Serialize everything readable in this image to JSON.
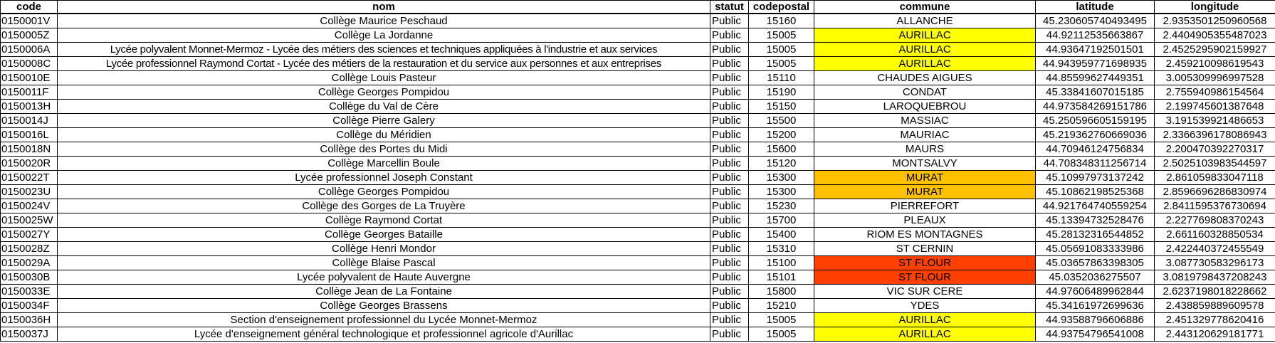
{
  "colors": {
    "AURILLAC": "#ffff00",
    "MURAT": "#ffc000",
    "ST FLOUR": "#ff4000"
  },
  "headers": [
    "code",
    "nom",
    "statut",
    "codepostal",
    "commune",
    "latitude",
    "longitude"
  ],
  "rows": [
    [
      "0150001V",
      "Collège Maurice Peschaud",
      "Public",
      "15160",
      "ALLANCHE",
      "45.230605740493495",
      "2.9353501250960568"
    ],
    [
      "0150005Z",
      "Collège La Jordanne",
      "Public",
      "15005",
      "AURILLAC",
      "44.92112535663867",
      "2.4404905355487023"
    ],
    [
      "0150006A",
      "Lycée polyvalent Monnet-Mermoz - Lycée des métiers des sciences et techniques appliquées à l'industrie et aux services",
      "Public",
      "15005",
      "AURILLAC",
      "44.93647192501501",
      "2.4525295902159927"
    ],
    [
      "0150008C",
      "Lycée professionnel Raymond Cortat - Lycée des métiers de la restauration et du service aux personnes et aux entreprises",
      "Public",
      "15005",
      "AURILLAC",
      "44.943959771698935",
      "2.459210098619543"
    ],
    [
      "0150010E",
      "Collège Louis Pasteur",
      "Public",
      "15110",
      "CHAUDES AIGUES",
      "44.85599627449351",
      "3.005309996997528"
    ],
    [
      "0150011F",
      "Collège Georges Pompidou",
      "Public",
      "15190",
      "CONDAT",
      "45.33841607015185",
      "2.755940986154564"
    ],
    [
      "0150013H",
      "Collège du Val de Cère",
      "Public",
      "15150",
      "LAROQUEBROU",
      "44.973584269151786",
      "2.199745601387648"
    ],
    [
      "0150014J",
      "Collège Pierre Galery",
      "Public",
      "15500",
      "MASSIAC",
      "45.250596605159195",
      "3.191539921486653"
    ],
    [
      "0150016L",
      "Collège du Méridien",
      "Public",
      "15200",
      "MAURIAC",
      "45.219362760669036",
      "2.3366396178086943"
    ],
    [
      "0150018N",
      "Collège des Portes du Midi",
      "Public",
      "15600",
      "MAURS",
      "44.70946124756834",
      "2.200470392270317"
    ],
    [
      "0150020R",
      "Collège Marcellin Boule",
      "Public",
      "15120",
      "MONTSALVY",
      "44.708348311256714",
      "2.5025103983544597"
    ],
    [
      "0150022T",
      "Lycée professionnel Joseph Constant",
      "Public",
      "15300",
      "MURAT",
      "45.10997973137242",
      "2.861059833047118"
    ],
    [
      "0150023U",
      "Collège Georges Pompidou",
      "Public",
      "15300",
      "MURAT",
      "45.10862198525368",
      "2.8596696286830974"
    ],
    [
      "0150024V",
      "Collège des Gorges de La Truyère",
      "Public",
      "15230",
      "PIERREFORT",
      "44.921764740559254",
      "2.8411595376730694"
    ],
    [
      "0150025W",
      "Collège Raymond Cortat",
      "Public",
      "15700",
      "PLEAUX",
      "45.13394732528476",
      "2.227769808370243"
    ],
    [
      "0150027Y",
      "Collège Georges Bataille",
      "Public",
      "15400",
      "RIOM ES MONTAGNES",
      "45.28132316544852",
      "2.661160328850534"
    ],
    [
      "0150028Z",
      "Collège Henri Mondor",
      "Public",
      "15310",
      "ST CERNIN",
      "45.05691083333986",
      "2.422440372455549"
    ],
    [
      "0150029A",
      "Collège Blaise Pascal",
      "Public",
      "15100",
      "ST FLOUR",
      "45.03657863398305",
      "3.087730583296173"
    ],
    [
      "0150030B",
      "Lycée polyvalent de Haute Auvergne",
      "Public",
      "15101",
      "ST FLOUR",
      "45.0352036275507",
      "3.0819798437208243"
    ],
    [
      "0150033E",
      "Collège Jean de La Fontaine",
      "Public",
      "15800",
      "VIC SUR CERE",
      "44.97606489962844",
      "2.6237198018228662"
    ],
    [
      "0150034F",
      "Collège Georges Brassens",
      "Public",
      "15210",
      "YDES",
      "45.34161972699636",
      "2.438859889609578"
    ],
    [
      "0150036H",
      "Section d'enseignement professionnel du Lycée Monnet-Mermoz",
      "Public",
      "15005",
      "AURILLAC",
      "44.93588796606886",
      "2.451329778620416"
    ],
    [
      "0150037J",
      "Lycée d'enseignement général technologique et professionnel agricole d'Aurillac",
      "Public",
      "15005",
      "AURILLAC",
      "44.93754796541008",
      "2.443120629181771"
    ]
  ]
}
